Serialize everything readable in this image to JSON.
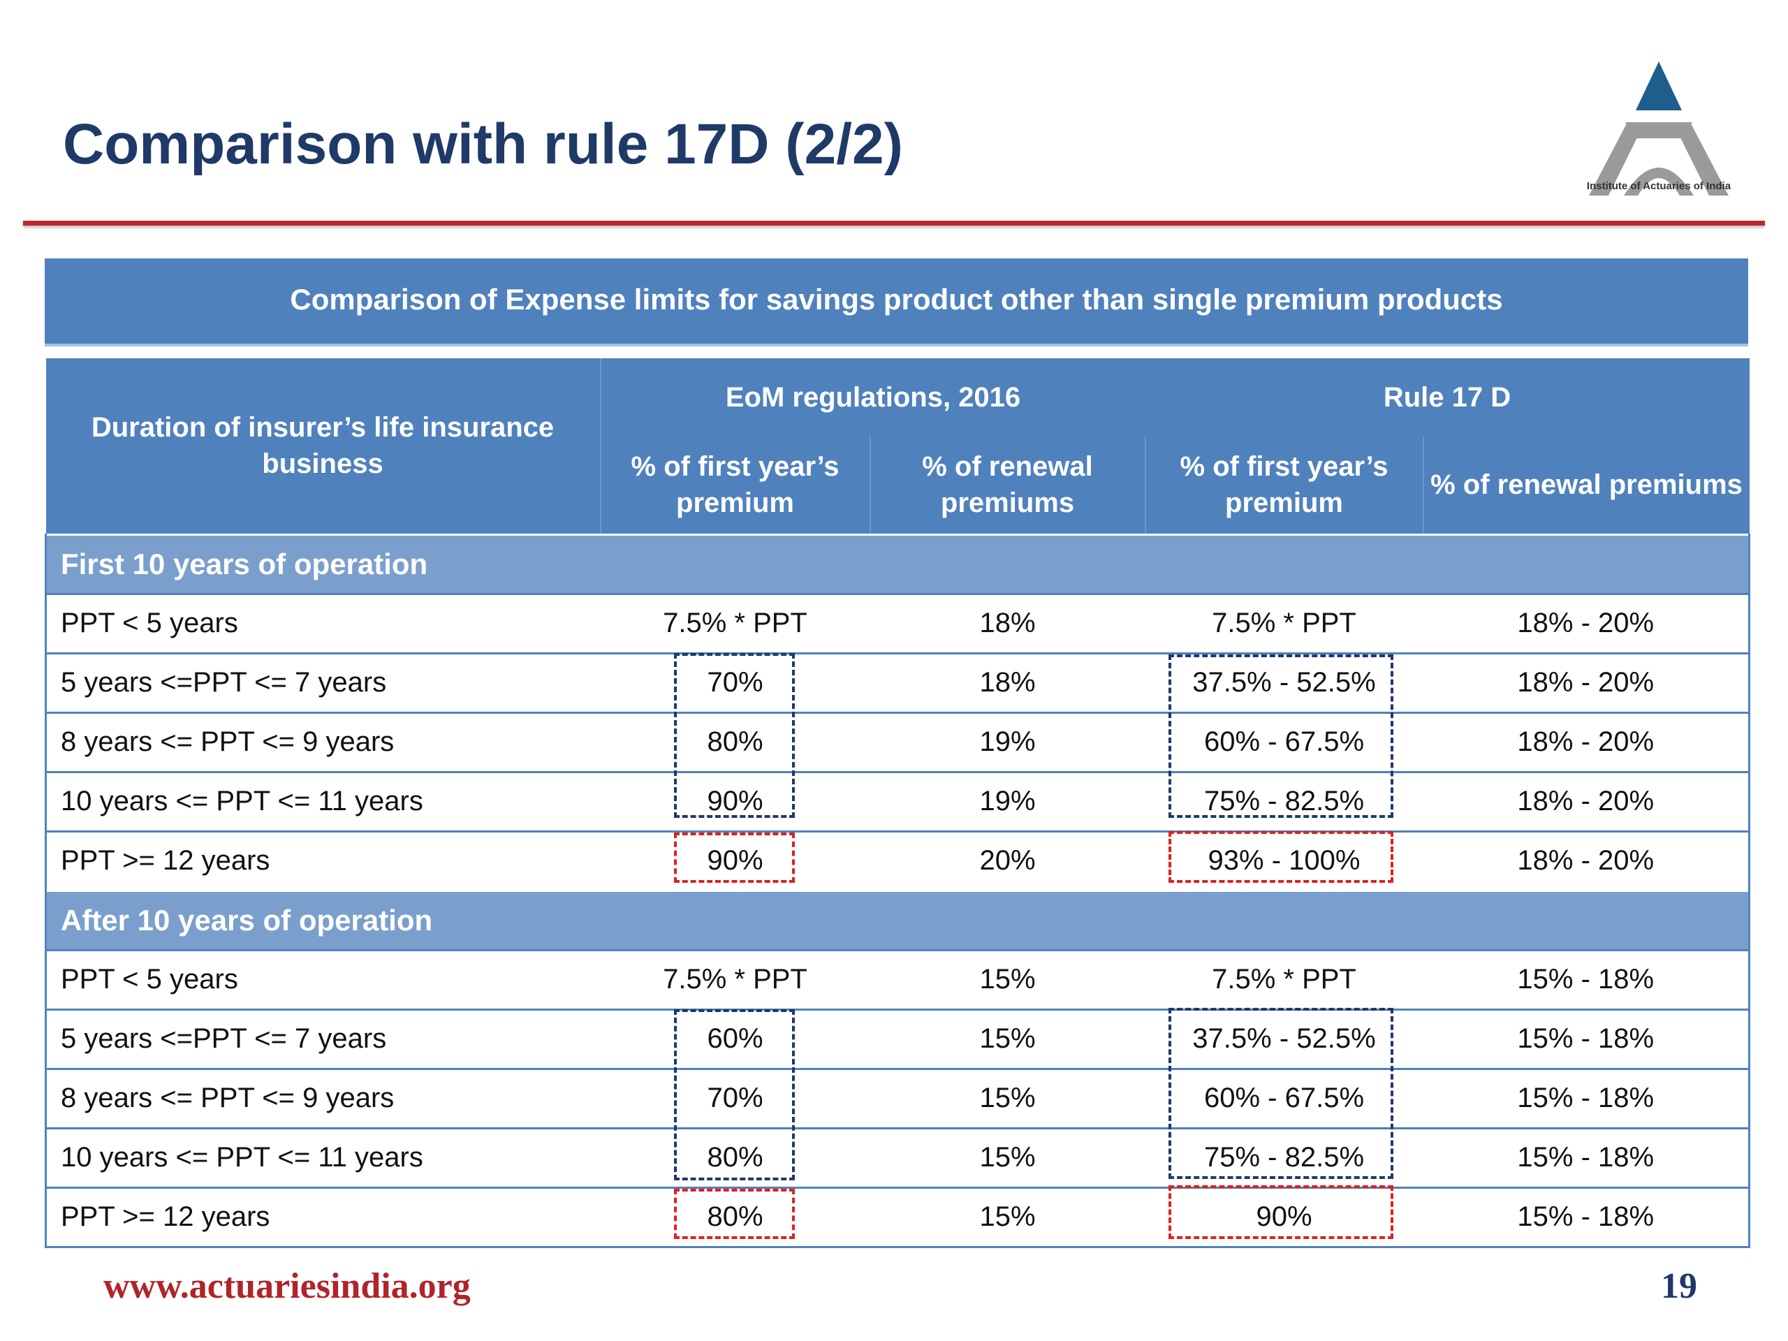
{
  "slide": {
    "title": "Comparison with rule 17D (2/2)",
    "logo_caption": "Institute of Actuaries of India",
    "website": "www.actuariesindia.org",
    "page_number": "19"
  },
  "colors": {
    "title_blue": "#1f3a68",
    "rule_red": "#c0282d",
    "header_blue": "#4f81bd",
    "section_blue": "#7a9fcc",
    "highlight_blue": "#1f3a68",
    "highlight_red": "#e02020"
  },
  "table": {
    "caption": "Comparison of Expense limits for savings product other than single premium products",
    "header": {
      "duration": "Duration of insurer’s life insurance business",
      "eom_group": "EoM regulations, 2016",
      "rule_group": "Rule 17 D",
      "eom_first": "% of first year’s premium",
      "eom_renewal": "% of renewal premiums",
      "rule_first": "% of first year’s premium",
      "rule_renewal": "% of renewal premiums"
    },
    "sections": [
      {
        "title": "First 10 years of operation",
        "rows": [
          {
            "duration": "PPT < 5 years",
            "eom_first": "7.5% * PPT",
            "eom_renewal": "18%",
            "rule_first": "7.5% * PPT",
            "rule_renewal": "18% - 20%"
          },
          {
            "duration": "5 years <=PPT <= 7 years",
            "eom_first": "70%",
            "eom_renewal": "18%",
            "rule_first": "37.5% - 52.5%",
            "rule_renewal": "18% - 20%"
          },
          {
            "duration": "8 years <= PPT <= 9 years",
            "eom_first": "80%",
            "eom_renewal": "19%",
            "rule_first": "60% - 67.5%",
            "rule_renewal": "18% - 20%"
          },
          {
            "duration": "10 years <= PPT <= 11 years",
            "eom_first": "90%",
            "eom_renewal": "19%",
            "rule_first": "75% - 82.5%",
            "rule_renewal": "18% - 20%"
          },
          {
            "duration": "PPT >= 12 years",
            "eom_first": "90%",
            "eom_renewal": "20%",
            "rule_first": "93% - 100%",
            "rule_renewal": "18% - 20%"
          }
        ]
      },
      {
        "title": "After 10 years of operation",
        "rows": [
          {
            "duration": "PPT < 5 years",
            "eom_first": "7.5% * PPT",
            "eom_renewal": "15%",
            "rule_first": "7.5% * PPT",
            "rule_renewal": "15% - 18%"
          },
          {
            "duration": "5 years <=PPT <= 7 years",
            "eom_first": "60%",
            "eom_renewal": "15%",
            "rule_first": "37.5% - 52.5%",
            "rule_renewal": "15% - 18%"
          },
          {
            "duration": "8 years <= PPT <= 9 years",
            "eom_first": "70%",
            "eom_renewal": "15%",
            "rule_first": "60% - 67.5%",
            "rule_renewal": "15% - 18%"
          },
          {
            "duration": "10 years <= PPT <= 11 years",
            "eom_first": "80%",
            "eom_renewal": "15%",
            "rule_first": "75% - 82.5%",
            "rule_renewal": "15% - 18%"
          },
          {
            "duration": "PPT >= 12 years",
            "eom_first": "80%",
            "eom_renewal": "15%",
            "rule_first": "90%",
            "rule_renewal": "15% - 18%"
          }
        ]
      }
    ]
  }
}
